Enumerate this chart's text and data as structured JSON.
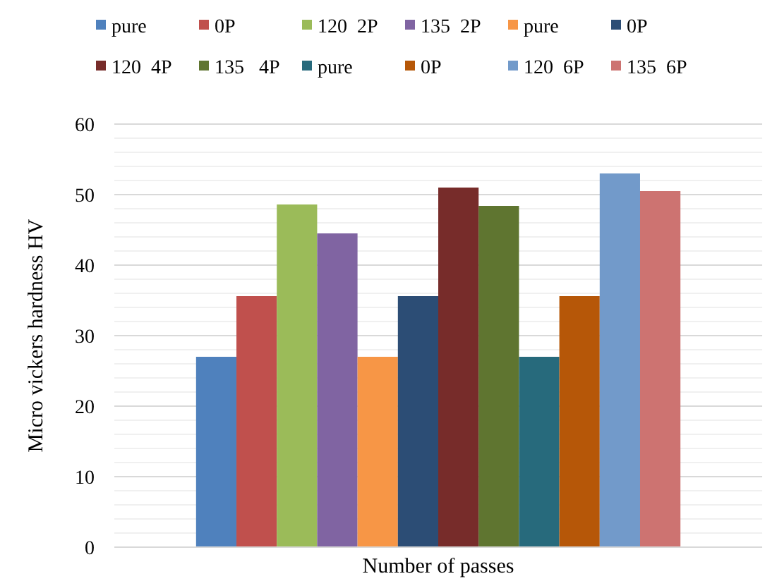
{
  "chart_data": {
    "type": "bar",
    "xlabel": "Number of passes",
    "ylabel": "Micro vickers hardness HV",
    "categories": [
      null
    ],
    "series": [
      {
        "name": "pure",
        "color": "#4f81bd",
        "values": [
          27
        ]
      },
      {
        "name": "0P",
        "color": "#c0504d",
        "values": [
          35.6
        ]
      },
      {
        "name": "120  2P",
        "color": "#9bbb59",
        "values": [
          48.6
        ]
      },
      {
        "name": "135  2P",
        "color": "#8064a2",
        "values": [
          44.5
        ]
      },
      {
        "name": "pure",
        "color": "#f79646",
        "values": [
          27
        ]
      },
      {
        "name": "0P",
        "color": "#2c4d75",
        "values": [
          35.6
        ]
      },
      {
        "name": "120  4P",
        "color": "#772c2a",
        "values": [
          51
        ]
      },
      {
        "name": "135   4P",
        "color": "#5f7530",
        "values": [
          48.4
        ]
      },
      {
        "name": "pure",
        "color": "#276a7c",
        "values": [
          27
        ]
      },
      {
        "name": "0P",
        "color": "#b65708",
        "values": [
          35.6
        ]
      },
      {
        "name": "120  6P",
        "color": "#729aca",
        "values": [
          53
        ]
      },
      {
        "name": "135  6P",
        "color": "#cd7371",
        "values": [
          50.5
        ]
      }
    ],
    "ylim": [
      0,
      60
    ],
    "yticks": [
      0,
      {
        "value": 2,
        "label": null
      },
      {
        "value": 4,
        "label": null
      },
      {
        "value": 6,
        "label": null
      },
      {
        "value": 8,
        "label": null
      },
      10,
      {
        "value": 12,
        "label": null
      },
      {
        "value": 14,
        "label": null
      },
      {
        "value": 16,
        "label": null
      },
      {
        "value": 18,
        "label": null
      },
      20,
      {
        "value": 22,
        "label": null
      },
      {
        "value": 24,
        "label": null
      },
      {
        "value": 26,
        "label": null
      },
      {
        "value": 28,
        "label": null
      },
      30,
      {
        "value": 32,
        "label": null
      },
      {
        "value": 34,
        "label": null
      },
      {
        "value": 36,
        "label": null
      },
      {
        "value": 38,
        "label": null
      },
      40,
      {
        "value": 42,
        "label": null
      },
      {
        "value": 44,
        "label": null
      },
      {
        "value": 46,
        "label": null
      },
      {
        "value": 48,
        "label": null
      },
      50,
      {
        "value": 52,
        "label": null
      },
      {
        "value": 54,
        "label": null
      },
      {
        "value": 56,
        "label": null
      },
      {
        "value": 58,
        "label": null
      },
      60
    ],
    "grid": "y",
    "legend": "top"
  }
}
